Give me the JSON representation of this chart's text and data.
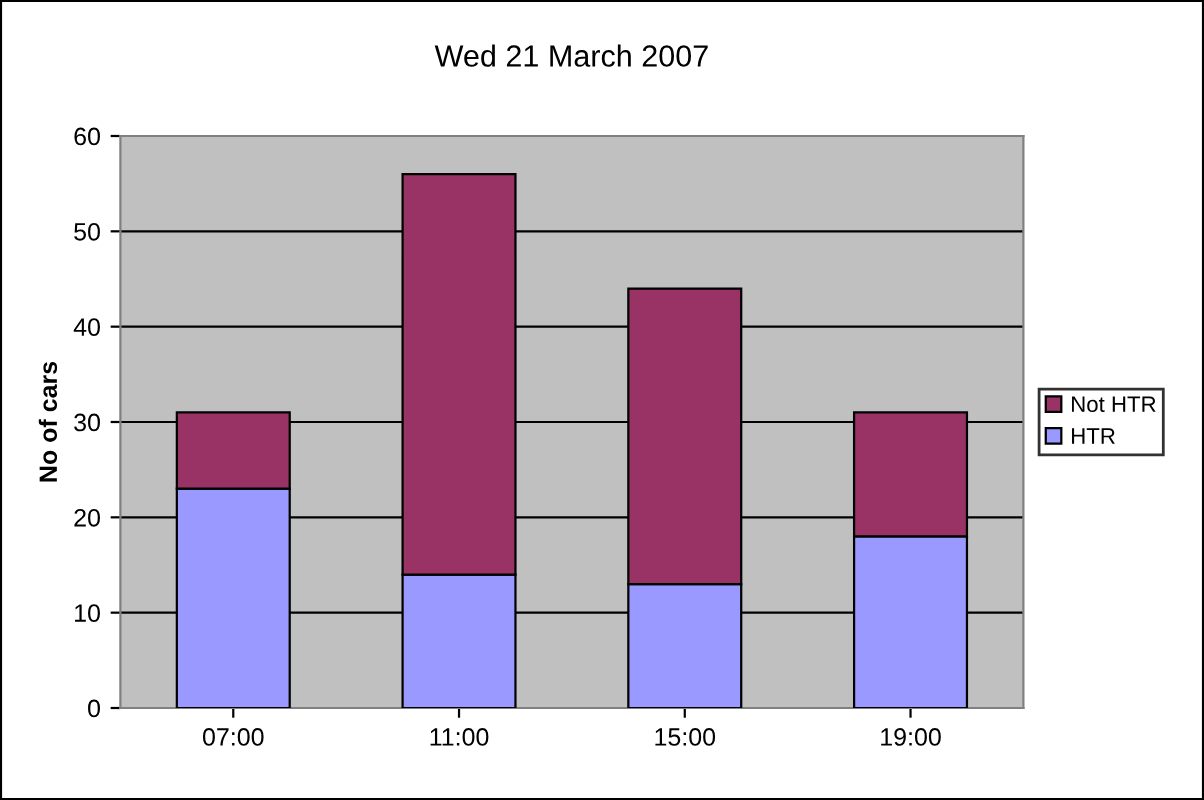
{
  "chart_data": {
    "type": "bar",
    "title": "Wed 21 March 2007",
    "ylabel": "No of cars",
    "categories": [
      "07:00",
      "11:00",
      "15:00",
      "19:00"
    ],
    "stacked": true,
    "series": [
      {
        "name": "HTR",
        "color": "#9999ff",
        "values": [
          23,
          14,
          13,
          18
        ]
      },
      {
        "name": "Not HTR",
        "color": "#993366",
        "values": [
          8,
          42,
          31,
          13
        ]
      }
    ],
    "ylim": [
      0,
      60
    ],
    "yticks": [
      0,
      10,
      20,
      30,
      40,
      50,
      60
    ],
    "grid": "y",
    "legend": "right"
  }
}
